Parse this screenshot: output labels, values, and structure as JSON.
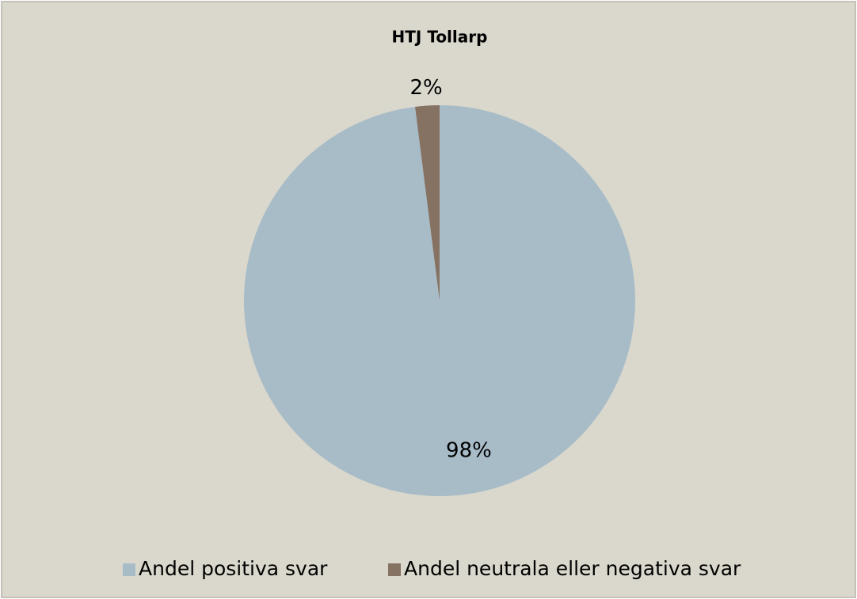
{
  "chart_data": {
    "type": "pie",
    "title": "HTJ Tollarp",
    "categories": [
      "Andel positiva svar",
      "Andel neutrala eller negativa svar"
    ],
    "values": [
      98,
      2
    ],
    "value_labels": [
      "98%",
      "2%"
    ],
    "colors": [
      "#a8bcc8",
      "#857262"
    ],
    "legend": "bottom"
  }
}
